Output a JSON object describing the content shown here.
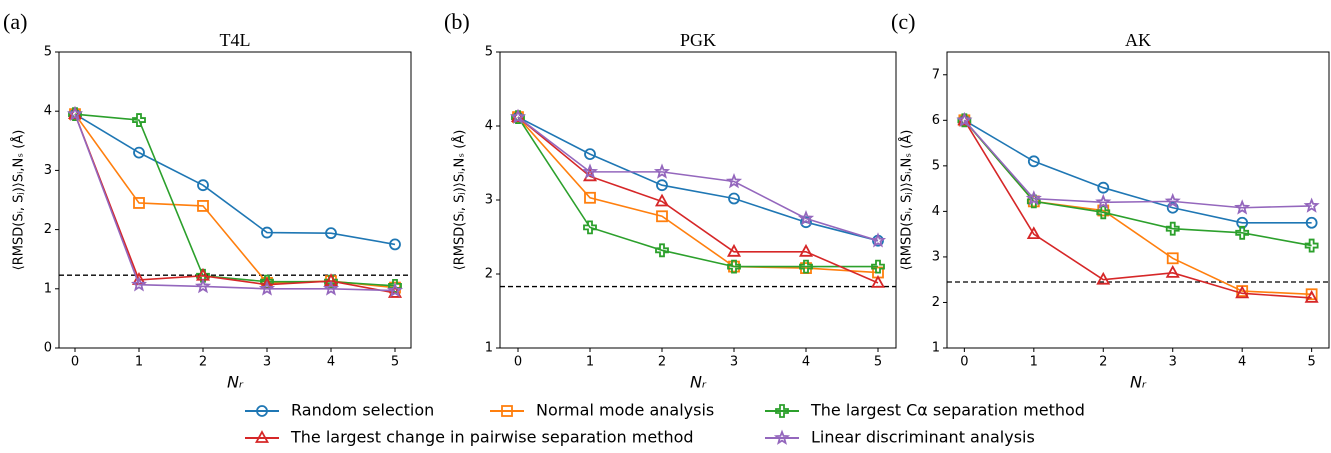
{
  "chart_data": [
    {
      "type": "line",
      "label": "(a)",
      "title": "T4L",
      "x_label": "Nᵣ",
      "y_label": "⟨RMSD(Sᵢ, Sⱼ)⟩Sᵢ,Nₛ (Å)",
      "x": [
        0,
        1,
        2,
        3,
        4,
        5
      ],
      "xlim": [
        -0.25,
        5.25
      ],
      "xticks": [
        0,
        1,
        2,
        3,
        4,
        5
      ],
      "ylim": [
        0,
        5
      ],
      "yticks": [
        0,
        1,
        2,
        3,
        4,
        5
      ],
      "hline": 1.23,
      "series": [
        {
          "name": "Random selection",
          "color": "#1f77b4",
          "marker": "circle",
          "values": [
            3.95,
            3.3,
            2.75,
            1.95,
            1.94,
            1.75
          ]
        },
        {
          "name": "Normal mode analysis",
          "color": "#ff7f0e",
          "marker": "square",
          "values": [
            3.95,
            2.45,
            2.4,
            1.1,
            1.13,
            1.02
          ]
        },
        {
          "name": "The largest Cα separation method",
          "color": "#2ca02c",
          "marker": "plus",
          "values": [
            3.95,
            3.85,
            1.22,
            1.12,
            1.12,
            1.05
          ]
        },
        {
          "name": "The largest change in pairwise separation method",
          "color": "#d62728",
          "marker": "triangle",
          "values": [
            3.95,
            1.15,
            1.22,
            1.07,
            1.13,
            0.93
          ]
        },
        {
          "name": "Linear discriminant analysis",
          "color": "#9467bd",
          "marker": "star",
          "values": [
            3.95,
            1.07,
            1.04,
            1.0,
            1.0,
            0.97
          ]
        }
      ]
    },
    {
      "type": "line",
      "label": "(b)",
      "title": "PGK",
      "x_label": "Nᵣ",
      "y_label": "⟨RMSD(Sᵢ, Sⱼ)⟩Sᵢ,Nₛ (Å)",
      "x": [
        0,
        1,
        2,
        3,
        4,
        5
      ],
      "xlim": [
        -0.25,
        5.25
      ],
      "xticks": [
        0,
        1,
        2,
        3,
        4,
        5
      ],
      "ylim": [
        1,
        5
      ],
      "yticks": [
        1,
        2,
        3,
        4,
        5
      ],
      "hline": 1.83,
      "series": [
        {
          "name": "Random selection",
          "color": "#1f77b4",
          "marker": "circle",
          "values": [
            4.12,
            3.62,
            3.2,
            3.02,
            2.7,
            2.45
          ]
        },
        {
          "name": "Normal mode analysis",
          "color": "#ff7f0e",
          "marker": "square",
          "values": [
            4.12,
            3.03,
            2.78,
            2.1,
            2.08,
            2.02
          ]
        },
        {
          "name": "The largest Cα separation method",
          "color": "#2ca02c",
          "marker": "plus",
          "values": [
            4.12,
            2.63,
            2.32,
            2.1,
            2.1,
            2.1
          ]
        },
        {
          "name": "The largest change in pairwise separation method",
          "color": "#d62728",
          "marker": "triangle",
          "values": [
            4.12,
            3.32,
            2.98,
            2.3,
            2.3,
            1.88
          ]
        },
        {
          "name": "Linear discriminant analysis",
          "color": "#9467bd",
          "marker": "star",
          "values": [
            4.12,
            3.38,
            3.38,
            3.25,
            2.75,
            2.45
          ]
        }
      ]
    },
    {
      "type": "line",
      "label": "(c)",
      "title": "AK",
      "x_label": "Nᵣ",
      "y_label": "⟨RMSD(Sᵢ, Sⱼ)⟩Sᵢ,Nₛ (Å)",
      "x": [
        0,
        1,
        2,
        3,
        4,
        5
      ],
      "xlim": [
        -0.25,
        5.25
      ],
      "xticks": [
        0,
        1,
        2,
        3,
        4,
        5
      ],
      "ylim": [
        1,
        7.5
      ],
      "yticks": [
        1,
        2,
        3,
        4,
        5,
        6,
        7
      ],
      "hline": 2.45,
      "series": [
        {
          "name": "Random selection",
          "color": "#1f77b4",
          "marker": "circle",
          "values": [
            6.0,
            5.1,
            4.52,
            4.08,
            3.75,
            3.75
          ]
        },
        {
          "name": "Normal mode analysis",
          "color": "#ff7f0e",
          "marker": "square",
          "values": [
            6.0,
            4.22,
            4.02,
            2.97,
            2.25,
            2.18
          ]
        },
        {
          "name": "The largest Cα separation method",
          "color": "#2ca02c",
          "marker": "plus",
          "values": [
            6.0,
            4.22,
            3.98,
            3.62,
            3.53,
            3.25
          ]
        },
        {
          "name": "The largest change in pairwise separation method",
          "color": "#d62728",
          "marker": "triangle",
          "values": [
            6.0,
            3.5,
            2.5,
            2.65,
            2.2,
            2.1
          ]
        },
        {
          "name": "Linear discriminant analysis",
          "color": "#9467bd",
          "marker": "star",
          "values": [
            6.0,
            4.28,
            4.2,
            4.22,
            4.08,
            4.12
          ]
        }
      ]
    }
  ]
}
